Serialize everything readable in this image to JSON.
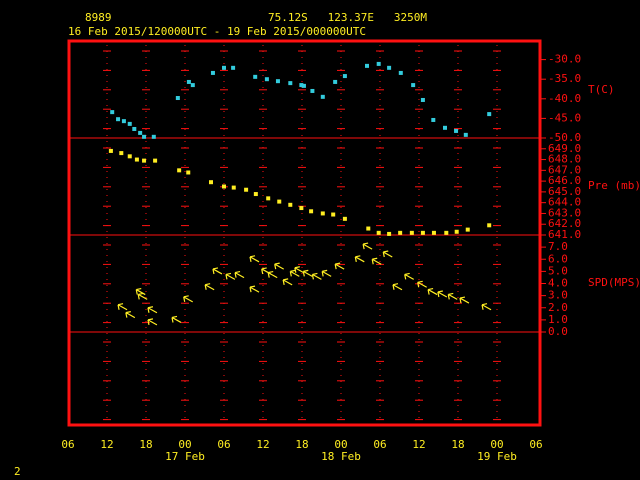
{
  "chart_data": {
    "type": "meteogram",
    "station": "8989",
    "location": "75.12S   123.37E   3250M",
    "title": "16 Feb 2015/120000UTC - 19 Feb 2015/000000UTC",
    "page_number": "2",
    "xlim": [
      6,
      78
    ],
    "xticks": [
      {
        "value": 6,
        "label": "06"
      },
      {
        "value": 12,
        "label": "12"
      },
      {
        "value": 18,
        "label": "18"
      },
      {
        "value": 24,
        "label": "00"
      },
      {
        "value": 30,
        "label": "06"
      },
      {
        "value": 36,
        "label": "12"
      },
      {
        "value": 42,
        "label": "18"
      },
      {
        "value": 48,
        "label": "00"
      },
      {
        "value": 54,
        "label": "06"
      },
      {
        "value": 60,
        "label": "12"
      },
      {
        "value": 66,
        "label": "18"
      },
      {
        "value": 72,
        "label": "00"
      },
      {
        "value": 78,
        "label": "06"
      }
    ],
    "date_ticks": [
      {
        "value": 24,
        "label": "17 Feb"
      },
      {
        "value": 48,
        "label": "18 Feb"
      },
      {
        "value": 72,
        "label": "19 Feb"
      }
    ],
    "panels": [
      {
        "type": "scatter",
        "ylabel": "T(C)",
        "color": "#33ccdd",
        "ylim": [
          -50,
          -25
        ],
        "yticks": [
          {
            "value": -30,
            "label": "-30.0"
          },
          {
            "value": -35,
            "label": "-35.0"
          },
          {
            "value": -40,
            "label": "-40.0"
          },
          {
            "value": -45,
            "label": "-45.0"
          },
          {
            "value": -50,
            "label": "-50.0"
          }
        ],
        "x": [
          12.8,
          13.7,
          14.6,
          15.5,
          16.2,
          17.1,
          17.7,
          19.2,
          22.9,
          24.6,
          25.2,
          28.3,
          30.0,
          31.4,
          34.8,
          36.6,
          38.3,
          40.2,
          41.9,
          42.3,
          43.6,
          45.2,
          47.1,
          48.6,
          52.0,
          53.8,
          55.4,
          57.2,
          59.1,
          60.6,
          62.2,
          64.0,
          65.7,
          67.2,
          70.8
        ],
        "values": [
          -43.4,
          -45.2,
          -45.7,
          -46.4,
          -47.7,
          -48.7,
          -49.7,
          -49.7,
          -39.8,
          -35.7,
          -36.5,
          -33.4,
          -32.1,
          -32.1,
          -34.4,
          -35.0,
          -35.5,
          -36.0,
          -36.5,
          -36.7,
          -38.0,
          -39.5,
          -35.7,
          -34.2,
          -31.6,
          -31.1,
          -32.1,
          -33.4,
          -36.5,
          -40.3,
          -45.4,
          -47.4,
          -48.2,
          -49.2,
          -43.9
        ]
      },
      {
        "type": "scatter",
        "ylabel": "Pre (mb)",
        "color": "#ffee22",
        "ylim": [
          641,
          650
        ],
        "yticks": [
          {
            "value": 649,
            "label": "649.0"
          },
          {
            "value": 648,
            "label": "648.0"
          },
          {
            "value": 647,
            "label": "647.0"
          },
          {
            "value": 646,
            "label": "646.0"
          },
          {
            "value": 645,
            "label": "645.0"
          },
          {
            "value": 644,
            "label": "644.0"
          },
          {
            "value": 643,
            "label": "643.0"
          },
          {
            "value": 642,
            "label": "642.0"
          },
          {
            "value": 641,
            "label": "641.0"
          }
        ],
        "x": [
          12.6,
          14.2,
          15.5,
          16.6,
          17.7,
          19.4,
          23.1,
          24.5,
          28.0,
          30.0,
          31.5,
          33.4,
          34.9,
          36.8,
          38.5,
          40.2,
          41.9,
          43.4,
          45.2,
          46.8,
          48.6,
          52.2,
          53.8,
          55.4,
          57.1,
          58.9,
          60.6,
          62.3,
          64.2,
          65.8,
          67.5,
          70.8
        ],
        "values": [
          648.8,
          648.6,
          648.3,
          648.0,
          647.9,
          647.9,
          647.0,
          646.8,
          645.9,
          645.5,
          645.4,
          645.2,
          644.8,
          644.4,
          644.1,
          643.8,
          643.5,
          643.2,
          643.0,
          642.9,
          642.5,
          641.6,
          641.2,
          641.1,
          641.2,
          641.2,
          641.2,
          641.2,
          641.2,
          641.3,
          641.5,
          641.9
        ]
      },
      {
        "type": "arrows",
        "ylabel": "SPD(MPS)",
        "color": "#ffee22",
        "ylim": [
          0,
          8
        ],
        "yticks": [
          {
            "value": 7,
            "label": "7.0"
          },
          {
            "value": 6,
            "label": "6.0"
          },
          {
            "value": 5,
            "label": "5.0"
          },
          {
            "value": 4,
            "label": "4.0"
          },
          {
            "value": 3,
            "label": "3.0"
          },
          {
            "value": 2,
            "label": "2.0"
          },
          {
            "value": 1,
            "label": "1.0"
          },
          {
            "value": 0,
            "label": "0.0"
          }
        ],
        "x": [
          13.7,
          14.9,
          16.5,
          16.8,
          18.3,
          18.3,
          22.0,
          23.8,
          27.1,
          28.3,
          30.3,
          31.7,
          34.0,
          34.0,
          35.8,
          36.8,
          37.8,
          39.1,
          40.2,
          40.9,
          42.2,
          43.6,
          45.1,
          47.1,
          50.2,
          51.4,
          52.8,
          54.5,
          56.0,
          57.8,
          59.8,
          61.4,
          62.9,
          64.5,
          66.3,
          69.7
        ],
        "values": [
          2.25,
          1.6,
          3.5,
          3.1,
          1.0,
          2.0,
          1.2,
          2.9,
          3.9,
          5.2,
          4.75,
          4.9,
          6.2,
          3.7,
          5.2,
          4.9,
          5.6,
          4.3,
          5.0,
          5.3,
          5.0,
          4.75,
          5.0,
          5.6,
          6.2,
          7.25,
          6.0,
          6.6,
          3.9,
          4.75,
          4.1,
          3.5,
          3.3,
          3.1,
          2.8,
          2.25
        ]
      }
    ]
  }
}
